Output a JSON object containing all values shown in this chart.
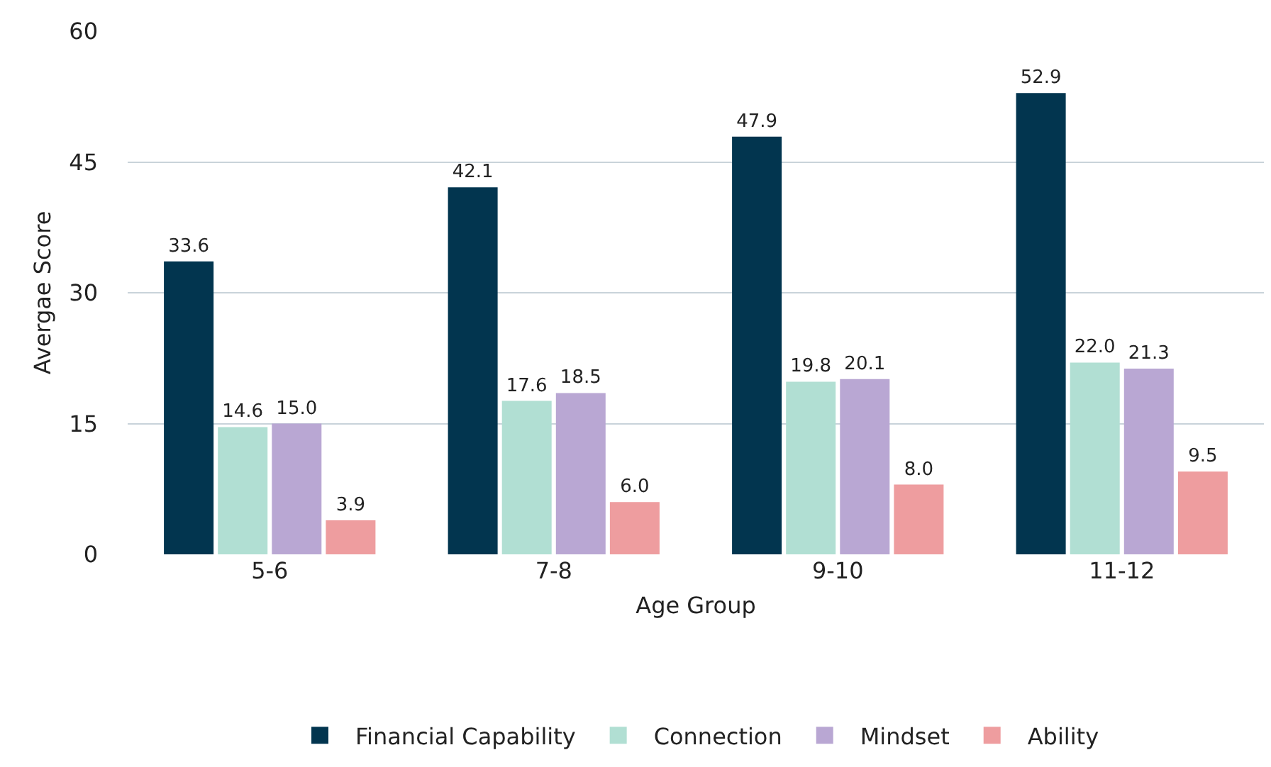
{
  "chart_data": {
    "type": "bar",
    "xlabel": "Age Group",
    "ylabel": "Avergae Score",
    "categories": [
      "5-6",
      "7-8",
      "9-10",
      "11-12"
    ],
    "series": [
      {
        "name": "Financial Capability",
        "color": "#02354f",
        "values": [
          33.6,
          42.1,
          47.9,
          52.9
        ],
        "value_labels": [
          "33.6",
          "42.1",
          "47.9",
          "52.9"
        ]
      },
      {
        "name": "Connection",
        "color": "#b1dfd3",
        "values": [
          14.6,
          17.6,
          19.8,
          22.0
        ],
        "value_labels": [
          "14.6",
          "17.6",
          "19.8",
          "22.0"
        ]
      },
      {
        "name": "Mindset",
        "color": "#b9a7d3",
        "values": [
          15.0,
          18.5,
          20.1,
          21.3
        ],
        "value_labels": [
          "15.0",
          "18.5",
          "20.1",
          "21.3"
        ]
      },
      {
        "name": "Ability",
        "color": "#ee9d9f",
        "values": [
          3.9,
          6.0,
          8.0,
          9.5
        ],
        "value_labels": [
          "3.9",
          "6.0",
          "8.0",
          "9.5"
        ]
      }
    ],
    "ylim": [
      0,
      60
    ],
    "yticks": [
      0,
      15,
      30,
      45,
      60
    ],
    "grid": "y",
    "legend": "bottom"
  }
}
